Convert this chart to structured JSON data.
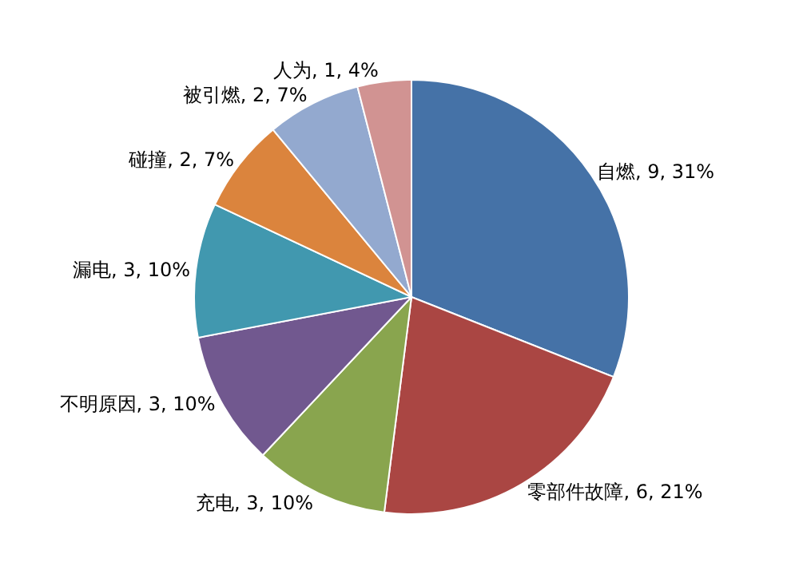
{
  "chart_data": {
    "type": "pie",
    "categories": [
      "自燃",
      "零部件故障",
      "充电",
      "不明原因",
      "漏电",
      "碰撞",
      "被引燃",
      "人为"
    ],
    "values": [
      31,
      21,
      10,
      10,
      10,
      7,
      7,
      4
    ],
    "value_labels": [
      "9, 31%",
      "6, 21%",
      "3, 10%",
      "3, 10%",
      "3, 10%",
      "2, 7%",
      "2, 7%",
      "1, 4%"
    ],
    "colors": [
      "#4572a7",
      "#aa4643",
      "#89a54e",
      "#71588f",
      "#4198af",
      "#db843d",
      "#93a9cf",
      "#d19392"
    ],
    "legend": false
  }
}
